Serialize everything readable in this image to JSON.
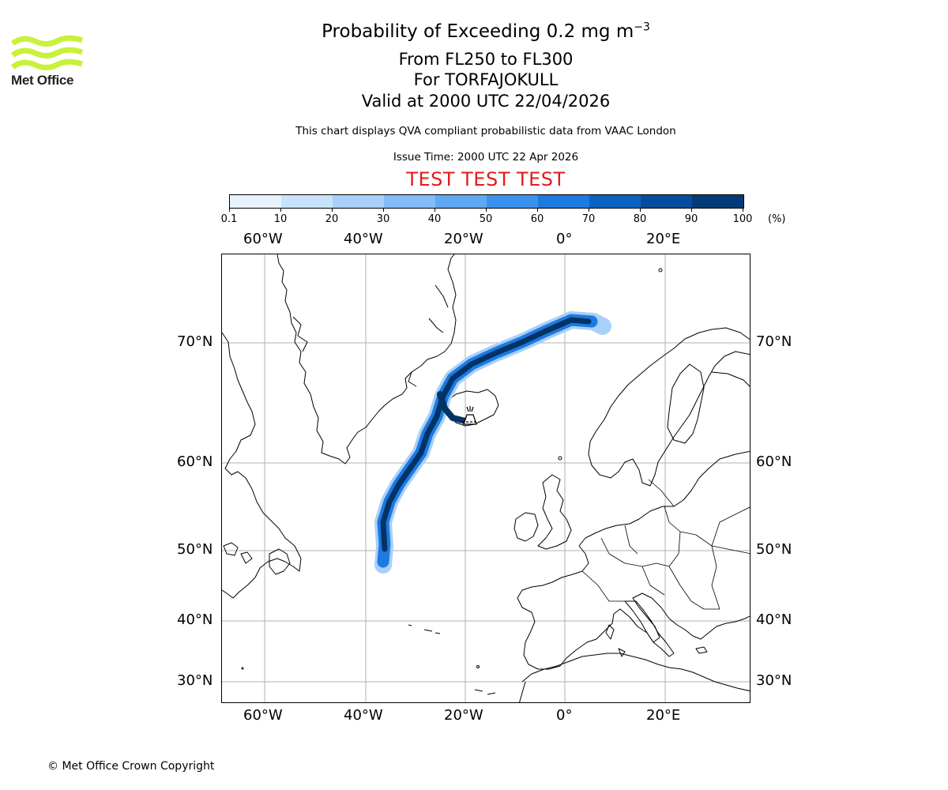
{
  "header": {
    "title_main": "Probability of Exceeding 0.2 mg m",
    "title_sup": "−3",
    "title_levels": "From FL250 to FL300",
    "title_volcano": "For TORFAJOKULL",
    "title_valid": "Valid at 2000 UTC 22/04/2026",
    "subtitle": "This chart displays QVA compliant probabilistic data from VAAC London",
    "issue_time": "Issue Time: 2000 UTC 22 Apr 2026",
    "test_banner": "TEST TEST TEST"
  },
  "logo": {
    "text": "Met Office",
    "color": "#c7f23a"
  },
  "colorbar": {
    "ticks": [
      "0.1",
      "10",
      "20",
      "30",
      "40",
      "50",
      "60",
      "70",
      "80",
      "90",
      "100"
    ],
    "unit": "(%)",
    "colors": [
      "#e8f3fe",
      "#c9e2fc",
      "#a8d0fa",
      "#83bcf7",
      "#5fa8f3",
      "#3a92ee",
      "#1d7ae0",
      "#0b62c2",
      "#064d9d",
      "#043a78",
      "#022654"
    ]
  },
  "map": {
    "lon_labels": [
      "60°W",
      "40°W",
      "20°W",
      "0°",
      "20°E"
    ],
    "lat_labels": [
      "70°N",
      "60°N",
      "50°N",
      "40°N",
      "30°N"
    ]
  },
  "footer": {
    "copyright": "© Met Office Crown Copyright"
  }
}
